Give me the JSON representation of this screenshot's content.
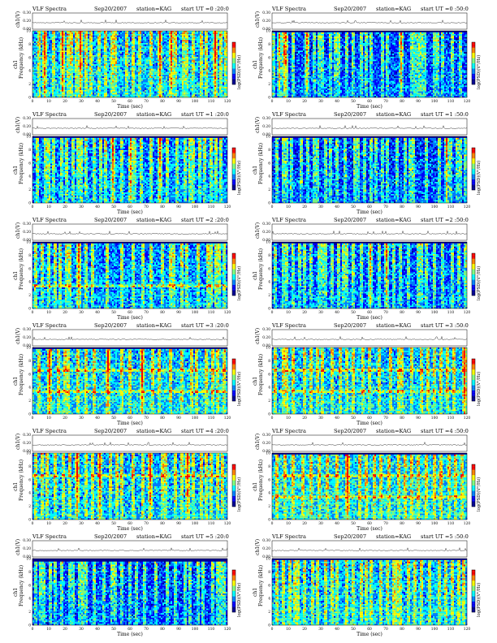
{
  "page": {
    "background": "#ffffff"
  },
  "shared": {
    "title": "VLF Spectra",
    "date": "Sep20/2007",
    "station": "station=KAG",
    "time_prefix": "start  UT",
    "xlabel": "Time  (sec)",
    "ylabel": "Frequency  (kHz)",
    "ch_label": "ch1",
    "sig_label": "ch1(V)",
    "cbar_label": "log(PSD)(V²/Hz)",
    "x_ticks": [
      "0",
      "10",
      "20",
      "30",
      "40",
      "50",
      "60",
      "70",
      "80",
      "90",
      "100",
      "110",
      "120"
    ],
    "y_ticks": [
      "0",
      "2",
      "4",
      "6",
      "8",
      "10"
    ],
    "sig_ticks": [
      "0.00",
      "0.20",
      "0.30"
    ],
    "colormap": [
      "#00008f",
      "#0000ff",
      "#0080ff",
      "#00ffff",
      "#80ff80",
      "#ffff00",
      "#ff8000",
      "#ff0000",
      "#800000"
    ]
  },
  "chart_data": [
    {
      "type": "heatmap",
      "start_ut": "=0 :20:0",
      "xlabel": "Time  (sec)",
      "ylabel": "Frequency  (kHz)",
      "xlim": [
        0,
        120
      ],
      "ylim": [
        0,
        10
      ],
      "frequency_cutoff_khz": 10,
      "background_intensity": 0.36,
      "hum_lines_khz": [],
      "bursts_sec": [
        4,
        7,
        8,
        13,
        18,
        19,
        22,
        24,
        27,
        29,
        30,
        33,
        36,
        41,
        45,
        49,
        51,
        58,
        62,
        66,
        73,
        78,
        79,
        85,
        86,
        88,
        93,
        95,
        99,
        104,
        107,
        112,
        113,
        116,
        119
      ],
      "gap_sec": []
    },
    {
      "type": "heatmap",
      "start_ut": "=0 :50:0",
      "xlabel": "Time  (sec)",
      "ylabel": "Frequency  (kHz)",
      "xlim": [
        0,
        120
      ],
      "ylim": [
        0,
        10
      ],
      "frequency_cutoff_khz": 9.7,
      "background_intensity": 0.24,
      "hum_lines_khz": [],
      "bursts_sec": [
        1,
        4,
        5,
        7,
        8,
        9,
        13,
        21,
        22,
        26,
        29,
        31,
        36,
        39,
        41,
        46,
        50,
        55,
        58,
        61,
        68,
        71,
        79,
        80,
        86,
        88,
        90,
        92,
        94,
        100,
        102,
        105,
        111,
        116
      ],
      "gap_sec": []
    },
    {
      "type": "heatmap",
      "start_ut": "=1 :20:0",
      "xlabel": "Time  (sec)",
      "ylabel": "Frequency  (kHz)",
      "xlim": [
        0,
        120
      ],
      "ylim": [
        0,
        10
      ],
      "frequency_cutoff_khz": 9.7,
      "background_intensity": 0.3,
      "hum_lines_khz": [],
      "bursts_sec": [
        3,
        8,
        10,
        13,
        18,
        21,
        25,
        28,
        30,
        33,
        38,
        42,
        45,
        49,
        50,
        55,
        60,
        61,
        63,
        67,
        73,
        78,
        79,
        83,
        89,
        94,
        97,
        99,
        103,
        106,
        110,
        113,
        116
      ],
      "gap_sec": []
    },
    {
      "type": "heatmap",
      "start_ut": "=1 :50:0",
      "xlabel": "Time  (sec)",
      "ylabel": "Frequency  (kHz)",
      "xlim": [
        0,
        120
      ],
      "ylim": [
        0,
        10
      ],
      "frequency_cutoff_khz": 9.7,
      "background_intensity": 0.24,
      "hum_lines_khz": [],
      "bursts_sec": [
        3,
        7,
        9,
        12,
        18,
        22,
        26,
        28,
        33,
        36,
        40,
        45,
        51,
        53,
        57,
        61,
        64,
        68,
        71,
        77,
        82,
        85,
        87,
        95,
        103,
        107,
        108,
        110,
        114,
        116,
        119
      ],
      "gap_sec": []
    },
    {
      "type": "heatmap",
      "start_ut": "=2 :20:0",
      "xlabel": "Time  (sec)",
      "ylabel": "Frequency  (kHz)",
      "xlim": [
        0,
        120
      ],
      "ylim": [
        0,
        10
      ],
      "frequency_cutoff_khz": 9.7,
      "background_intensity": 0.32,
      "hum_lines_khz": [
        3.5
      ],
      "bursts_sec": [
        2,
        6,
        10,
        14,
        17,
        21,
        23,
        28,
        29,
        33,
        37,
        46,
        55,
        62,
        68,
        73,
        80,
        85,
        87,
        92,
        95,
        102,
        108,
        110,
        113,
        115,
        118
      ],
      "gap_sec": []
    },
    {
      "type": "heatmap",
      "start_ut": "=2 :50:0",
      "xlabel": "Time  (sec)",
      "ylabel": "Frequency  (kHz)",
      "xlim": [
        0,
        120
      ],
      "ylim": [
        0,
        10
      ],
      "frequency_cutoff_khz": 9.7,
      "background_intensity": 0.26,
      "hum_lines_khz": [],
      "bursts_sec": [
        2,
        7,
        9,
        13,
        17,
        20,
        24,
        29,
        31,
        33,
        37,
        41,
        44,
        46,
        50,
        55,
        60,
        61,
        66,
        70,
        71,
        75,
        79,
        84,
        90,
        92,
        95,
        100,
        105,
        111,
        115,
        119
      ],
      "gap_sec": []
    },
    {
      "type": "heatmap",
      "start_ut": "=3 :20:0",
      "xlabel": "Time  (sec)",
      "ylabel": "Frequency  (kHz)",
      "xlim": [
        0,
        120
      ],
      "ylim": [
        0,
        10
      ],
      "frequency_cutoff_khz": 9.7,
      "background_intensity": 0.38,
      "hum_lines_khz": [
        3.5,
        6.5
      ],
      "bursts_sec": [
        4,
        10,
        11,
        16,
        20,
        22,
        28,
        33,
        38,
        46,
        47,
        55,
        60,
        67,
        68,
        74,
        78,
        85,
        92,
        98,
        101,
        107,
        111,
        114,
        118
      ],
      "gap_sec": []
    },
    {
      "type": "heatmap",
      "start_ut": "=3 :50:0",
      "xlabel": "Time  (sec)",
      "ylabel": "Frequency  (kHz)",
      "xlim": [
        0,
        120
      ],
      "ylim": [
        0,
        10
      ],
      "frequency_cutoff_khz": 9.9,
      "background_intensity": 0.37,
      "hum_lines_khz": [
        3.5,
        6.5
      ],
      "bursts_sec": [
        2,
        7,
        9,
        13,
        20,
        24,
        28,
        31,
        37,
        42,
        46,
        50,
        56,
        60,
        66,
        73,
        78,
        80,
        86,
        92,
        96,
        100,
        104,
        108,
        112,
        118,
        119
      ],
      "gap_sec": []
    },
    {
      "type": "heatmap",
      "start_ut": "=4 :20:0",
      "xlabel": "Time  (sec)",
      "ylabel": "Frequency  (kHz)",
      "xlim": [
        0,
        120
      ],
      "ylim": [
        0,
        10
      ],
      "frequency_cutoff_khz": 9.9,
      "background_intensity": 0.36,
      "hum_lines_khz": [
        6.5
      ],
      "bursts_sec": [
        2,
        6,
        9,
        14,
        19,
        23,
        27,
        28,
        33,
        37,
        41,
        42,
        48,
        52,
        55,
        62,
        68,
        72,
        73,
        80,
        82,
        88,
        92,
        95,
        96,
        99,
        104,
        107,
        110,
        114,
        117
      ],
      "gap_sec": []
    },
    {
      "type": "heatmap",
      "start_ut": "=4 :50:0",
      "xlabel": "Time  (sec)",
      "ylabel": "Frequency  (kHz)",
      "xlim": [
        0,
        120
      ],
      "ylim": [
        0,
        10
      ],
      "frequency_cutoff_khz": 9.8,
      "background_intensity": 0.4,
      "hum_lines_khz": [
        3.5,
        6.5
      ],
      "bursts_sec": [
        3,
        8,
        13,
        19,
        24,
        29,
        34,
        40,
        46,
        47,
        54,
        58,
        63,
        67,
        72,
        78,
        82,
        86,
        90,
        95,
        100,
        104,
        109,
        113,
        117
      ],
      "gap_sec": []
    },
    {
      "type": "heatmap",
      "start_ut": "=5 :20:0",
      "xlabel": "Time  (sec)",
      "ylabel": "Frequency  (kHz)",
      "xlim": [
        0,
        120
      ],
      "ylim": [
        0,
        10
      ],
      "frequency_cutoff_khz": 9.6,
      "background_intensity": 0.24,
      "hum_lines_khz": [],
      "bursts_sec": [
        2,
        5,
        7,
        11,
        14,
        18,
        23,
        25,
        29,
        31,
        33,
        38,
        44,
        49,
        51,
        55,
        60,
        64,
        69,
        76,
        83,
        88,
        94,
        97,
        102,
        105,
        111,
        114,
        116,
        118
      ],
      "gap_sec": []
    },
    {
      "type": "heatmap",
      "start_ut": "=5 :50:0",
      "xlabel": "Time  (sec)",
      "ylabel": "Frequency  (kHz)",
      "xlim": [
        0,
        120
      ],
      "ylim": [
        0,
        10
      ],
      "frequency_cutoff_khz": 9.8,
      "background_intensity": 0.36,
      "hum_lines_khz": [],
      "bursts_sec": [
        3,
        7,
        11,
        14,
        16,
        20,
        25,
        28,
        33,
        37,
        40,
        46,
        50,
        55,
        58,
        61,
        67,
        71,
        75,
        77,
        79,
        84,
        88,
        92,
        97,
        103,
        107,
        111,
        115,
        118
      ],
      "gap_sec": []
    }
  ]
}
